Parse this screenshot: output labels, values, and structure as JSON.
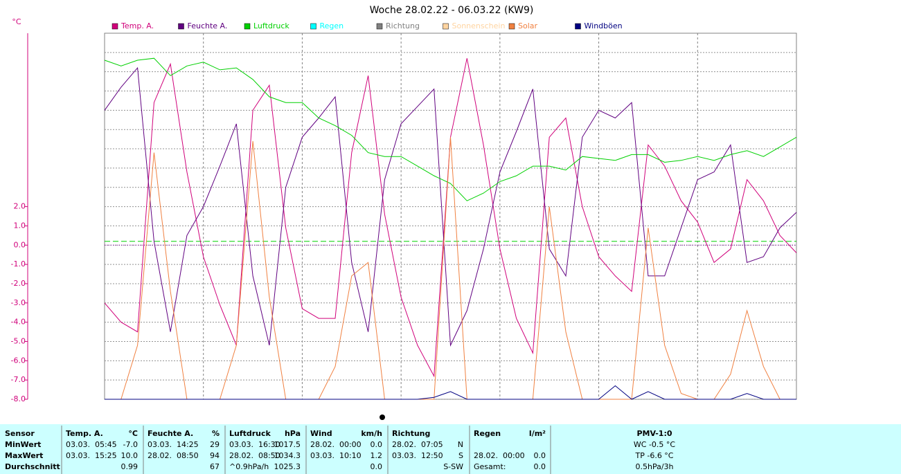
{
  "chart_data": {
    "type": "line",
    "title": "Woche 28.02.22 - 06.03.22 (KW9)",
    "y_label": "°C",
    "ylim": [
      -8,
      11
    ],
    "yticks": [
      {
        "value": 2,
        "label": "2.0"
      },
      {
        "value": 1,
        "label": "1.0"
      },
      {
        "value": 0,
        "label": "0.0"
      },
      {
        "value": -1,
        "label": "-1.0"
      },
      {
        "value": -2,
        "label": "-2.0"
      },
      {
        "value": -3,
        "label": "-3.0"
      },
      {
        "value": -4,
        "label": "-4.0"
      },
      {
        "value": -5,
        "label": "-5.0"
      },
      {
        "value": -6,
        "label": "-6.0"
      },
      {
        "value": -7,
        "label": "-7.0"
      },
      {
        "value": -8,
        "label": "-8.0"
      }
    ],
    "ygrid": [
      3,
      4,
      5,
      6,
      7,
      8,
      9,
      10
    ],
    "grid": true,
    "reference_lines": [
      {
        "value": 0.2,
        "color": "#00d000",
        "style": "dashed"
      },
      {
        "value": 0,
        "color": "#8000a0",
        "style": "dotted"
      }
    ],
    "series": [
      {
        "name": "Temp. A.",
        "color": "#d0007a",
        "values": [
          -3.0,
          -4.0,
          -4.5,
          7.4,
          9.4,
          3.8,
          -0.6,
          -3.1,
          -5.2,
          7.0,
          8.3,
          0.9,
          -3.3,
          -3.8,
          -3.8,
          4.8,
          8.8,
          1.6,
          -2.7,
          -5.2,
          -6.8,
          5.6,
          9.7,
          5.2,
          -0.2,
          -3.8,
          -5.6,
          5.6,
          6.6,
          2.0,
          -0.6,
          -1.6,
          -2.4,
          5.2,
          4.1,
          2.3,
          1.2,
          -0.9,
          -0.2,
          3.4,
          2.3,
          0.5,
          -0.4
        ]
      },
      {
        "name": "Feuchte A.",
        "color": "#600080",
        "values": [
          7.0,
          8.2,
          9.2,
          0.2,
          -4.5,
          0.5,
          2.0,
          4.1,
          6.3,
          -1.6,
          -5.2,
          3.0,
          5.6,
          6.6,
          7.7,
          -0.9,
          -4.5,
          3.4,
          6.3,
          7.2,
          8.1,
          -5.2,
          -3.4,
          -0.2,
          3.8,
          5.9,
          8.1,
          -0.2,
          -1.6,
          5.6,
          7.0,
          6.6,
          7.4,
          -1.6,
          -1.6,
          0.9,
          3.4,
          3.8,
          5.2,
          -0.9,
          -0.6,
          0.9,
          1.7
        ]
      },
      {
        "name": "Luftdruck",
        "color": "#00d000",
        "values": [
          9.6,
          9.3,
          9.6,
          9.7,
          8.8,
          9.3,
          9.5,
          9.1,
          9.2,
          8.6,
          7.7,
          7.4,
          7.4,
          6.6,
          6.2,
          5.7,
          4.8,
          4.6,
          4.6,
          4.1,
          3.6,
          3.2,
          2.3,
          2.7,
          3.3,
          3.6,
          4.1,
          4.1,
          3.9,
          4.6,
          4.5,
          4.4,
          4.7,
          4.7,
          4.3,
          4.4,
          4.6,
          4.4,
          4.7,
          4.9,
          4.6,
          5.1,
          5.6
        ]
      },
      {
        "name": "Solar",
        "color": "#f08040",
        "values": [
          -8.0,
          -8.0,
          -5.2,
          4.8,
          -2.4,
          -8.0,
          -8.0,
          -8.0,
          -5.2,
          5.4,
          -2.7,
          -8.0,
          -8.0,
          -8.0,
          -6.3,
          -1.6,
          -0.9,
          -8.0,
          -8.0,
          -8.0,
          -8.0,
          5.6,
          -8.0,
          -8.0,
          -8.0,
          -8.0,
          -8.0,
          2.0,
          -4.5,
          -8.0,
          -8.0,
          -8.0,
          -8.0,
          0.9,
          -5.2,
          -7.7,
          -8.0,
          -8.0,
          -6.7,
          -3.4,
          -6.3,
          -8.0,
          -8.0
        ]
      },
      {
        "name": "Windböen",
        "color": "#000080",
        "values": [
          -8.0,
          -8.0,
          -8.0,
          -8.0,
          -8.0,
          -8.0,
          -8.0,
          -8.0,
          -8.0,
          -8.0,
          -8.0,
          -8.0,
          -8.0,
          -8.0,
          -8.0,
          -8.0,
          -8.0,
          -8.0,
          -8.0,
          -8.0,
          -7.9,
          -7.6,
          -8.0,
          -8.0,
          -8.0,
          -8.0,
          -8.0,
          -8.0,
          -8.0,
          -8.0,
          -8.0,
          -7.3,
          -8.0,
          -7.6,
          -8.0,
          -8.0,
          -8.0,
          -8.0,
          -8.0,
          -7.7,
          -8.0,
          -8.0,
          -8.0
        ]
      }
    ],
    "legend_extra": [
      {
        "name": "Regen",
        "color": "#00ffff"
      },
      {
        "name": "Richtung",
        "color": "#808080"
      },
      {
        "name": "Sonnenschein",
        "color": "#ffd4a0"
      }
    ]
  },
  "table": {
    "header": [
      "Sensor",
      "Temp. A.",
      "°C",
      "Feuchte A.",
      "%",
      "Luftdruck",
      "hPa",
      "Wind",
      "km/h",
      "Richtung",
      null,
      "Regen",
      "l/m²",
      "PMV-1:0"
    ],
    "rows": [
      [
        "MinWert",
        "03.03.  05:45",
        "-7.0",
        "03.03.  14:25",
        "29",
        "03.03.  16:30",
        "1017.5",
        "28.02.  00:00",
        "0.0",
        "28.02.  07:05",
        "N",
        null,
        null,
        "WC -0.5 °C"
      ],
      [
        "MaxWert",
        "03.03.  15:25",
        "10.0",
        "28.02.  08:50",
        "94",
        "28.02.  08:50",
        "1034.3",
        "03.03.  10:10",
        "1.2",
        "03.03.  12:50",
        "S",
        "28.02.  00:00",
        "0.0",
        "TP -6.6 °C"
      ],
      [
        "Durchschnitt",
        null,
        "0.99",
        null,
        "67",
        "^0.9hPa/h",
        "1025.3",
        null,
        "0.0",
        null,
        "S-SW",
        "Gesamt:",
        "0.0",
        "0.5hPa/3h"
      ]
    ]
  }
}
